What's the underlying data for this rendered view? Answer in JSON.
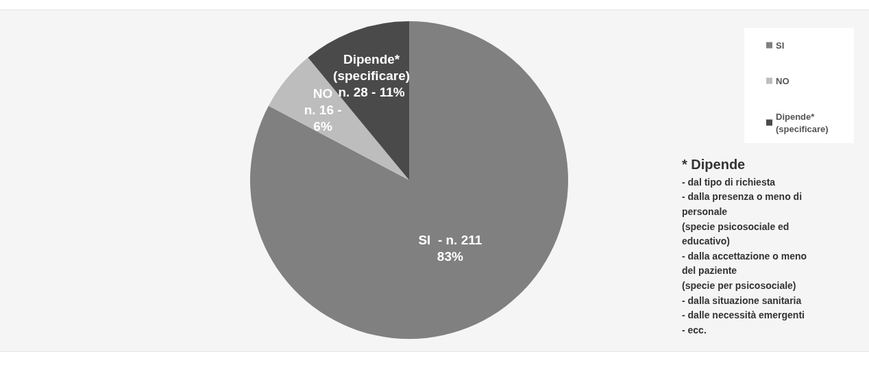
{
  "chart_data": {
    "type": "pie",
    "categories": [
      "SI",
      "NO",
      "Dipende* (specificare)"
    ],
    "values": [
      211,
      16,
      28
    ],
    "colors": [
      "#808080",
      "#bdbdbd",
      "#4a4a4a"
    ],
    "value_labels": [
      "SI  - n. 211\n83%",
      "NO\nn. 16 -\n6%",
      "Dipende*\n(specificare)\nn. 28 - 11%"
    ],
    "legend": "top right",
    "annotations": [
      "* Dipende",
      "- dal tipo di richiesta\n- dalla presenza o meno di\npersonale\n(specie psicosociale ed\neducativo)\n- dalla accettazione o meno\ndel paziente\n(specie per psicosociale)\n- dalla situazione sanitaria\n- dalle necessità emergenti\n- ecc."
    ]
  }
}
